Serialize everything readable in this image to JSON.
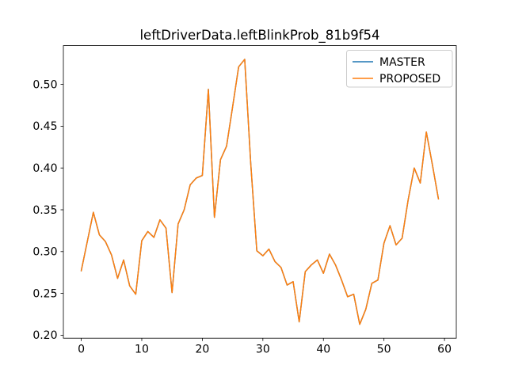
{
  "title": "leftDriverData.leftBlinkProb_81b9f54",
  "legend": {
    "items": [
      {
        "label": "MASTER",
        "color": "#1f77b4"
      },
      {
        "label": "PROPOSED",
        "color": "#ff7f0e"
      }
    ],
    "position": "upper right",
    "border_color": "#cccccc",
    "background": "#ffffff"
  },
  "axes": {
    "spine_color": "#000000",
    "background": "#ffffff"
  },
  "chart_data": {
    "type": "line",
    "title": "leftDriverData.leftBlinkProb_81b9f54",
    "xlabel": "",
    "ylabel": "",
    "grid": false,
    "legend_position": "upper right",
    "x": [
      0,
      1,
      2,
      3,
      4,
      5,
      6,
      7,
      8,
      9,
      10,
      11,
      12,
      13,
      14,
      15,
      16,
      17,
      18,
      19,
      20,
      21,
      22,
      23,
      24,
      25,
      26,
      27,
      28,
      29,
      30,
      31,
      32,
      33,
      34,
      35,
      36,
      37,
      38,
      39,
      40,
      41,
      42,
      43,
      44,
      45,
      46,
      47,
      48,
      49,
      50,
      51,
      52,
      53,
      54,
      55,
      56,
      57,
      58,
      59
    ],
    "xlim": [
      -2.95,
      61.95
    ],
    "ylim": [
      0.1964,
      0.5464
    ],
    "xticks": [
      0,
      10,
      20,
      30,
      40,
      50,
      60
    ],
    "yticks": [
      0.2,
      0.25,
      0.3,
      0.35,
      0.4,
      0.45,
      0.5
    ],
    "series": [
      {
        "name": "MASTER",
        "color": "#1f77b4",
        "values": [
          0.277,
          0.312,
          0.347,
          0.32,
          0.312,
          0.296,
          0.268,
          0.29,
          0.259,
          0.249,
          0.313,
          0.324,
          0.317,
          0.338,
          0.328,
          0.251,
          0.333,
          0.35,
          0.38,
          0.388,
          0.391,
          0.494,
          0.341,
          0.41,
          0.426,
          0.473,
          0.521,
          0.53,
          0.405,
          0.301,
          0.295,
          0.303,
          0.288,
          0.281,
          0.26,
          0.264,
          0.216,
          0.276,
          0.284,
          0.29,
          0.274,
          0.297,
          0.284,
          0.266,
          0.246,
          0.249,
          0.213,
          0.231,
          0.262,
          0.266,
          0.31,
          0.331,
          0.308,
          0.316,
          0.362,
          0.4,
          0.382,
          0.443,
          0.404,
          0.363
        ]
      },
      {
        "name": "PROPOSED",
        "color": "#ff7f0e",
        "values": [
          0.277,
          0.312,
          0.347,
          0.32,
          0.312,
          0.296,
          0.268,
          0.29,
          0.259,
          0.249,
          0.313,
          0.324,
          0.317,
          0.338,
          0.328,
          0.251,
          0.333,
          0.35,
          0.38,
          0.388,
          0.391,
          0.494,
          0.341,
          0.41,
          0.426,
          0.473,
          0.521,
          0.53,
          0.405,
          0.301,
          0.295,
          0.303,
          0.288,
          0.281,
          0.26,
          0.264,
          0.216,
          0.276,
          0.284,
          0.29,
          0.274,
          0.297,
          0.284,
          0.266,
          0.246,
          0.249,
          0.213,
          0.231,
          0.262,
          0.266,
          0.31,
          0.331,
          0.308,
          0.316,
          0.362,
          0.4,
          0.382,
          0.443,
          0.404,
          0.363
        ]
      }
    ]
  }
}
